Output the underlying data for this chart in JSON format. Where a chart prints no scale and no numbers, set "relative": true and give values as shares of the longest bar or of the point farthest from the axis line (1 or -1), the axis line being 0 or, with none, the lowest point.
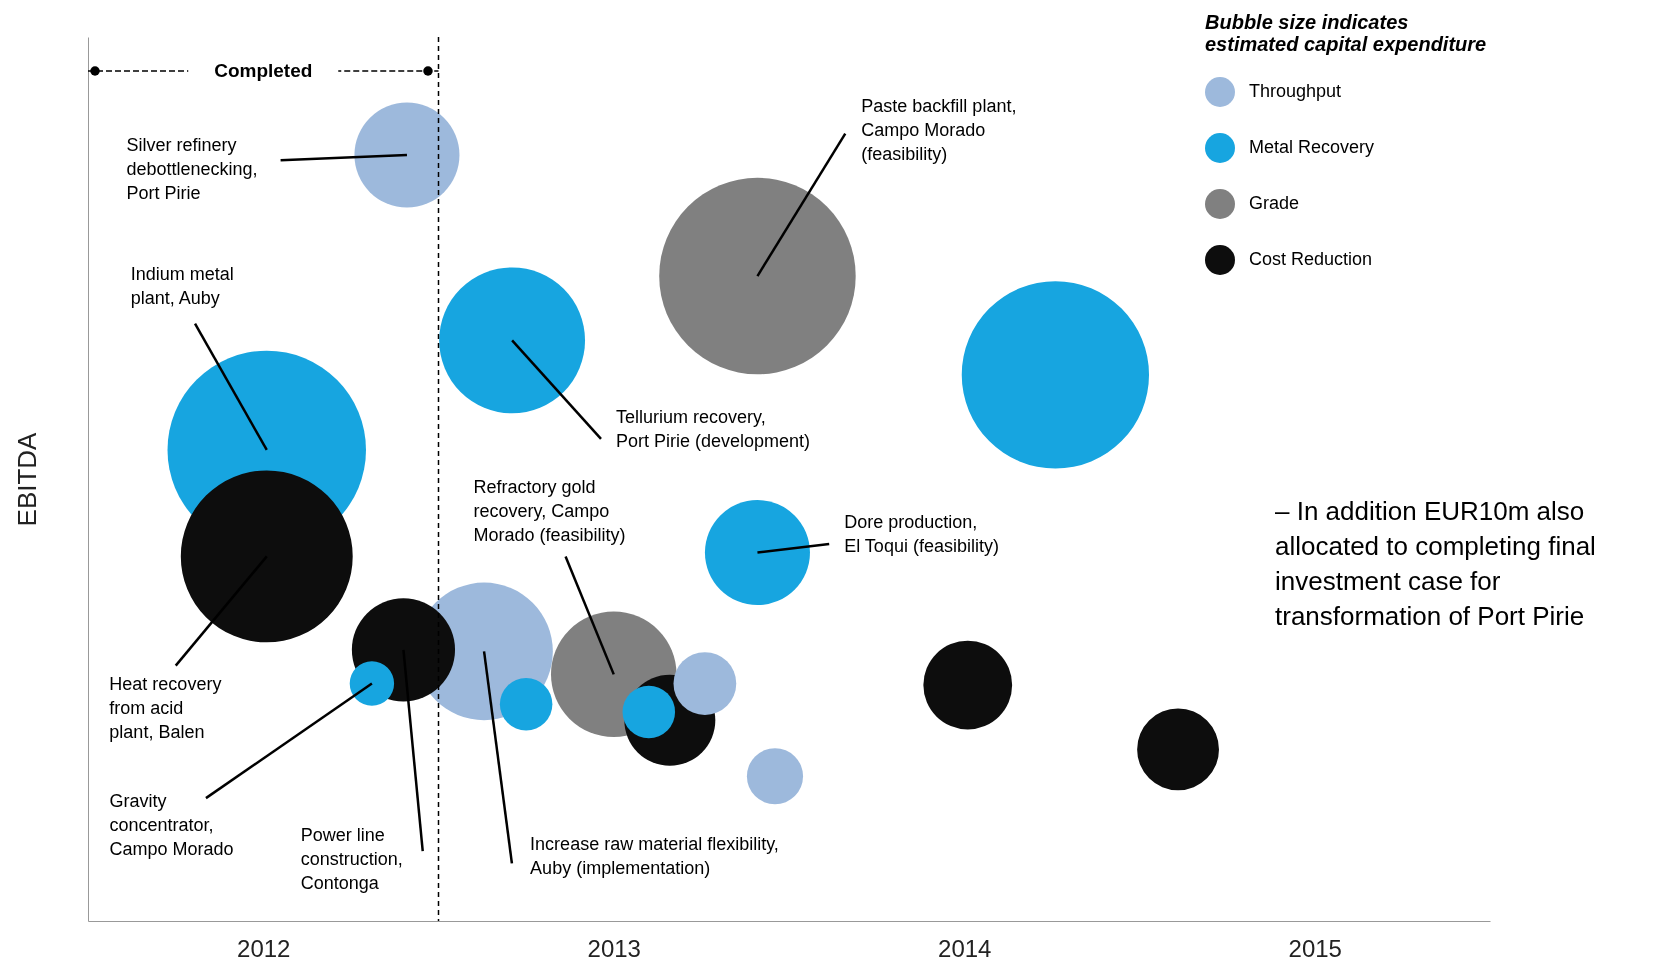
{
  "chart_data": {
    "type": "bubble",
    "relative": true,
    "ylabel": "EBITDA",
    "legend_title": "Bubble size indicates\nestimated capital expenditure",
    "legend": "top right",
    "marker": "circle",
    "xlim": [
      2011.5,
      2015.5
    ],
    "xticks": [
      2012,
      2013,
      2014,
      2015
    ],
    "series": [
      {
        "name": "Throughput",
        "color": "#9db9dc",
        "x": [
          2012.41,
          2012.63,
          2013.26,
          2013.46
        ],
        "values": [
          1.0,
          0.352,
          0.31,
          0.189
        ],
        "sizes": [
          0.28,
          0.48,
          0.1,
          0.08
        ]
      },
      {
        "name": "Metal Recovery",
        "color": "#17a5e0",
        "x": [
          2012.01,
          2012.71,
          2014.26,
          2013.41,
          2012.31,
          2012.75,
          2013.1
        ],
        "values": [
          0.615,
          0.758,
          0.713,
          0.481,
          0.31,
          0.283,
          0.273
        ],
        "sizes": [
          1,
          0.54,
          0.89,
          0.28,
          0.05,
          0.07,
          0.07
        ]
      },
      {
        "name": "Grade",
        "color": "#808080",
        "x": [
          2013.41,
          2013.0
        ],
        "values": [
          0.842,
          0.322
        ],
        "sizes": [
          0.98,
          0.4
        ]
      },
      {
        "name": "Cost Reduction",
        "color": "#0d0d0d",
        "x": [
          2012.01,
          2012.4,
          2013.16,
          2014.01,
          2014.61
        ],
        "values": [
          0.476,
          0.354,
          0.262,
          0.308,
          0.224
        ],
        "sizes": [
          0.75,
          0.27,
          0.21,
          0.2,
          0.17
        ]
      }
    ],
    "ref_lines": [
      {
        "axis": "x",
        "value": 2012.5,
        "label": "Completed",
        "line_style": "dashed"
      }
    ],
    "annotations": [
      {
        "text": "Silver refinery\ndebottlenecking,\nPort Pirie",
        "x": 2012.41,
        "y": 1.0
      },
      {
        "text": "Indium metal\nplant, Auby",
        "x": 2012.01,
        "y": 0.615
      },
      {
        "text": "Heat recovery\nfrom acid\nplant, Balen",
        "x": 2012.01,
        "y": 0.476
      },
      {
        "text": "Tellurium recovery,\nPort Pirie (development)",
        "x": 2012.71,
        "y": 0.758
      },
      {
        "text": "Paste backfill plant,\nCampo Morado\n(feasibility)",
        "x": 2013.41,
        "y": 0.842
      },
      {
        "text": "Refractory gold\nrecovery, Campo\nMorado (feasibility)",
        "x": 2013.0,
        "y": 0.322
      },
      {
        "text": "Dore production,\nEl Toqui (feasibility)",
        "x": 2013.41,
        "y": 0.481
      },
      {
        "text": "Gravity\nconcentrator,\nCampo Morado",
        "x": 2012.31,
        "y": 0.31
      },
      {
        "text": "Power line\nconstruction,\nContonga",
        "x": 2012.4,
        "y": 0.354
      },
      {
        "text": "Increase raw material flexibility,\nAuby (implementation)",
        "x": 2012.63,
        "y": 0.352
      },
      "– In addition EUR10m also\nallocated to completing final\ninvestment case for\ntransformation of Port Pirie"
    ]
  }
}
